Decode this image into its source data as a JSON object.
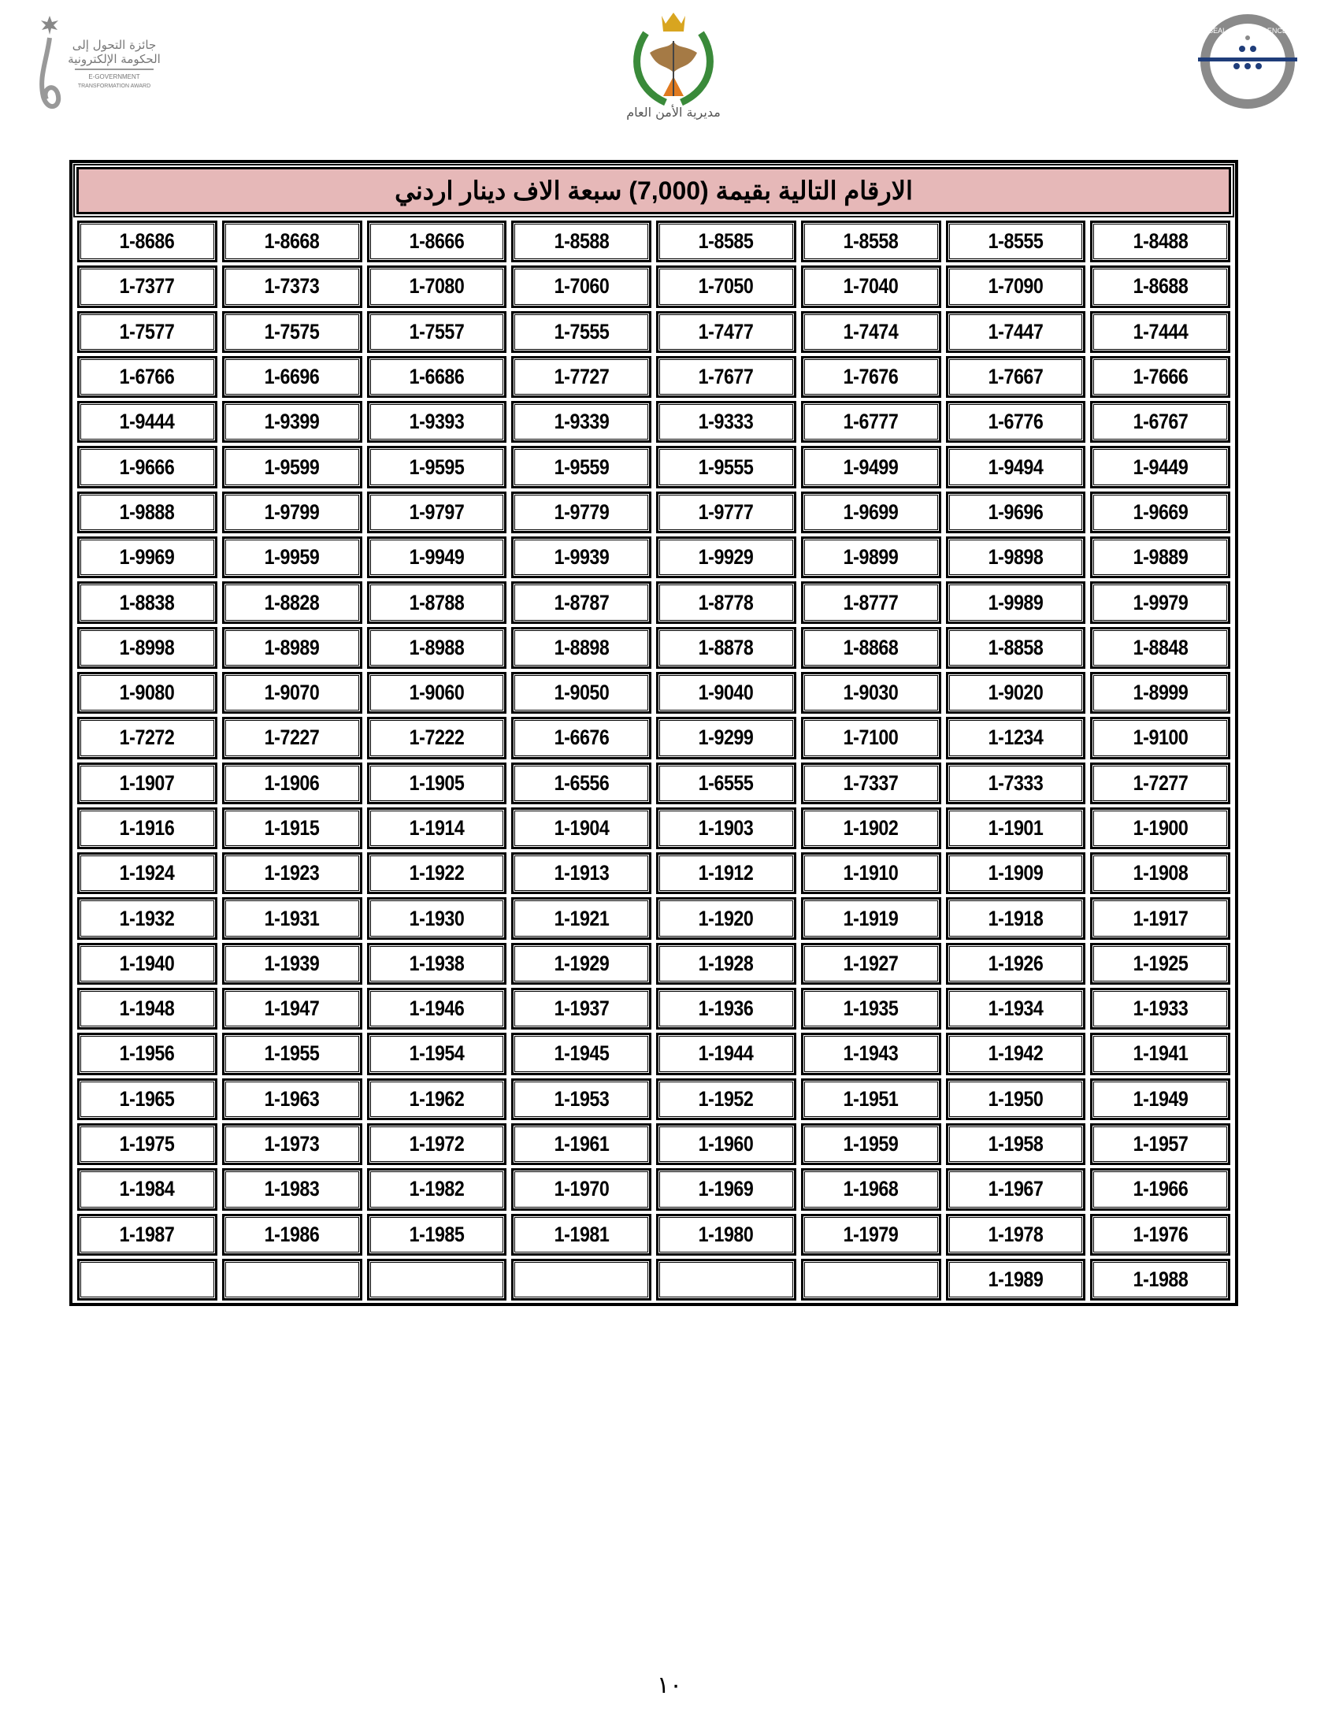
{
  "header": {
    "logo_left_text": "جائزة التحول إلى الحكومة الإلكترونية E-GOVERNMENT TRANSFORMATION AWARD",
    "logo_center_text": "مديرية الأمن العام",
    "logo_right_text": "SEAL OF EXCELLENCE",
    "colors": {
      "title_bg": "#e6b8b8",
      "emblem_green": "#3a8a3a",
      "emblem_gold": "#d8a520",
      "seal_grey": "#8a8a8a",
      "seal_blue": "#1f3d7a"
    }
  },
  "table": {
    "title": "الارقام التالية بقيمة  (7,000) سبعة  الاف دينار اردني",
    "rows": [
      [
        "1-8686",
        "1-8668",
        "1-8666",
        "1-8588",
        "1-8585",
        "1-8558",
        "1-8555",
        "1-8488"
      ],
      [
        "1-7377",
        "1-7373",
        "1-7080",
        "1-7060",
        "1-7050",
        "1-7040",
        "1-7090",
        "1-8688"
      ],
      [
        "1-7577",
        "1-7575",
        "1-7557",
        "1-7555",
        "1-7477",
        "1-7474",
        "1-7447",
        "1-7444"
      ],
      [
        "1-6766",
        "1-6696",
        "1-6686",
        "1-7727",
        "1-7677",
        "1-7676",
        "1-7667",
        "1-7666"
      ],
      [
        "1-9444",
        "1-9399",
        "1-9393",
        "1-9339",
        "1-9333",
        "1-6777",
        "1-6776",
        "1-6767"
      ],
      [
        "1-9666",
        "1-9599",
        "1-9595",
        "1-9559",
        "1-9555",
        "1-9499",
        "1-9494",
        "1-9449"
      ],
      [
        "1-9888",
        "1-9799",
        "1-9797",
        "1-9779",
        "1-9777",
        "1-9699",
        "1-9696",
        "1-9669"
      ],
      [
        "1-9969",
        "1-9959",
        "1-9949",
        "1-9939",
        "1-9929",
        "1-9899",
        "1-9898",
        "1-9889"
      ],
      [
        "1-8838",
        "1-8828",
        "1-8788",
        "1-8787",
        "1-8778",
        "1-8777",
        "1-9989",
        "1-9979"
      ],
      [
        "1-8998",
        "1-8989",
        "1-8988",
        "1-8898",
        "1-8878",
        "1-8868",
        "1-8858",
        "1-8848"
      ],
      [
        "1-9080",
        "1-9070",
        "1-9060",
        "1-9050",
        "1-9040",
        "1-9030",
        "1-9020",
        "1-8999"
      ],
      [
        "1-7272",
        "1-7227",
        "1-7222",
        "1-6676",
        "1-9299",
        "1-7100",
        "1-1234",
        "1-9100"
      ],
      [
        "1-1907",
        "1-1906",
        "1-1905",
        "1-6556",
        "1-6555",
        "1-7337",
        "1-7333",
        "1-7277"
      ],
      [
        "1-1916",
        "1-1915",
        "1-1914",
        "1-1904",
        "1-1903",
        "1-1902",
        "1-1901",
        "1-1900"
      ],
      [
        "1-1924",
        "1-1923",
        "1-1922",
        "1-1913",
        "1-1912",
        "1-1910",
        "1-1909",
        "1-1908"
      ],
      [
        "1-1932",
        "1-1931",
        "1-1930",
        "1-1921",
        "1-1920",
        "1-1919",
        "1-1918",
        "1-1917"
      ],
      [
        "1-1940",
        "1-1939",
        "1-1938",
        "1-1929",
        "1-1928",
        "1-1927",
        "1-1926",
        "1-1925"
      ],
      [
        "1-1948",
        "1-1947",
        "1-1946",
        "1-1937",
        "1-1936",
        "1-1935",
        "1-1934",
        "1-1933"
      ],
      [
        "1-1956",
        "1-1955",
        "1-1954",
        "1-1945",
        "1-1944",
        "1-1943",
        "1-1942",
        "1-1941"
      ],
      [
        "1-1965",
        "1-1963",
        "1-1962",
        "1-1953",
        "1-1952",
        "1-1951",
        "1-1950",
        "1-1949"
      ],
      [
        "1-1975",
        "1-1973",
        "1-1972",
        "1-1961",
        "1-1960",
        "1-1959",
        "1-1958",
        "1-1957"
      ],
      [
        "1-1984",
        "1-1983",
        "1-1982",
        "1-1970",
        "1-1969",
        "1-1968",
        "1-1967",
        "1-1966"
      ],
      [
        "1-1987",
        "1-1986",
        "1-1985",
        "1-1981",
        "1-1980",
        "1-1979",
        "1-1978",
        "1-1976"
      ],
      [
        "",
        "",
        "",
        "",
        "",
        "",
        "1-1989",
        "1-1988"
      ]
    ]
  },
  "footer": {
    "page_number": "١٠"
  }
}
